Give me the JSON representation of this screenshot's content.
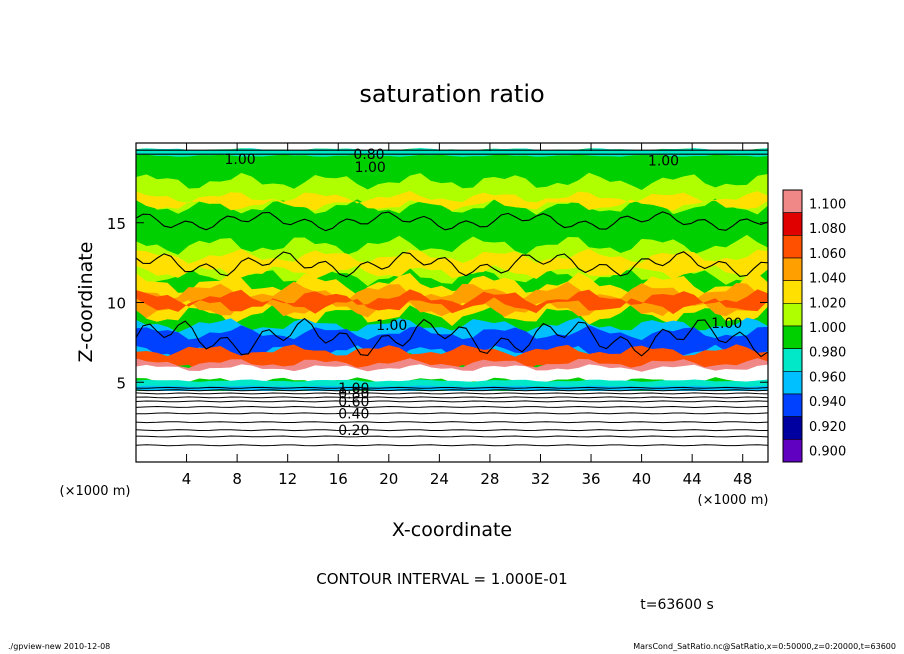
{
  "chart_data": {
    "type": "heatmap",
    "title": "saturation ratio",
    "xlabel": "X-coordinate",
    "ylabel": "Z-coordinate",
    "x_unit_label": "(×1000 m)",
    "y_unit_label": "(×1000 m)",
    "xlim": [
      0,
      50
    ],
    "ylim": [
      0,
      20
    ],
    "x_ticks": [
      4,
      8,
      12,
      16,
      20,
      24,
      28,
      32,
      36,
      40,
      44,
      48
    ],
    "y_ticks": [
      5,
      10,
      15
    ],
    "x_tick_labels": [
      "4",
      "8",
      "12",
      "16",
      "20",
      "24",
      "28",
      "32",
      "36",
      "40",
      "44",
      "48"
    ],
    "y_tick_labels": [
      "5",
      "10",
      "15"
    ],
    "colorbar": {
      "levels": [
        "1.100",
        "1.080",
        "1.060",
        "1.040",
        "1.020",
        "1.000",
        "0.980",
        "0.960",
        "0.940",
        "0.920",
        "0.900"
      ],
      "colors": [
        "#f08888",
        "#e00000",
        "#ff5000",
        "#ffa000",
        "#ffe000",
        "#b0ff00",
        "#00d000",
        "#00e8c8",
        "#00c0ff",
        "#0040ff",
        "#0000a0",
        "#6000c0"
      ]
    },
    "contour_labels": [
      {
        "text": "0.20",
        "x": 16,
        "z": 2.0
      },
      {
        "text": "0.40",
        "x": 16,
        "z": 3.05
      },
      {
        "text": "0.60",
        "x": 16,
        "z": 3.8
      },
      {
        "text": "0.80",
        "x": 16,
        "z": 4.3
      },
      {
        "text": "1.00",
        "x": 16,
        "z": 4.65
      },
      {
        "text": "1.00",
        "x": 19,
        "z": 8.6
      },
      {
        "text": "1.00",
        "x": 45.5,
        "z": 8.7
      },
      {
        "text": "1.00",
        "x": 7,
        "z": 19.0
      },
      {
        "text": "0.80",
        "x": 17.2,
        "z": 19.3
      },
      {
        "text": "1.00",
        "x": 17.3,
        "z": 18.5
      },
      {
        "text": "1.00",
        "x": 40.5,
        "z": 18.9
      }
    ],
    "contour_levels": [
      0.1,
      0.2,
      0.3,
      0.4,
      0.5,
      0.6,
      0.7,
      0.8,
      0.9,
      1.0
    ],
    "contour_interval_text": "CONTOUR INTERVAL = 1.000E-01",
    "time_text": "t=63600 s"
  },
  "footer": {
    "left": "./gpview-new  2010-12-08",
    "right": "MarsCond_SatRatio.nc@SatRatio,x=0:50000,z=0:20000,t=63600"
  }
}
